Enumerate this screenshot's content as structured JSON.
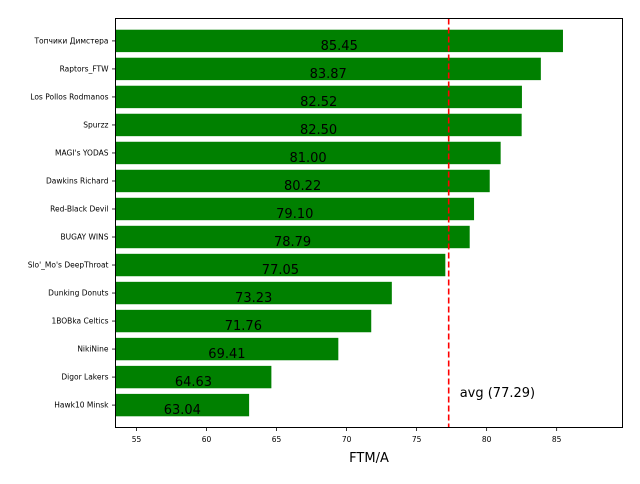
{
  "chart_data": {
    "type": "bar",
    "orientation": "horizontal",
    "categories": [
      "Топчики Димстера",
      "Raptors_FTW",
      "Los Pollos Rodmanos",
      "Spurzz",
      "MAGI's YODAS",
      "Dawkins Richard",
      "Red-Black Devil",
      "BUGAY WINS",
      "Slo'_Mo's DeepThroat",
      "Dunking Donuts",
      "1BOBka Celtics",
      "NikiNine",
      "Digor Lakers",
      "Hawk10 Minsk"
    ],
    "values": [
      85.45,
      83.87,
      82.52,
      82.5,
      81.0,
      80.22,
      79.1,
      78.79,
      77.05,
      73.23,
      71.76,
      69.41,
      64.63,
      63.04
    ],
    "value_labels": [
      "85.45",
      "83.87",
      "82.52",
      "82.50",
      "81.00",
      "80.22",
      "79.10",
      "78.79",
      "77.05",
      "73.23",
      "71.76",
      "69.41",
      "64.63",
      "63.04"
    ],
    "xlabel": "FTM/A",
    "ylabel": "",
    "xlim": [
      53.5,
      89.7
    ],
    "xticks": [
      55,
      60,
      65,
      70,
      75,
      80,
      85
    ],
    "bar_color": "#008000",
    "grid": false,
    "average": {
      "value": 77.29,
      "label": "avg (77.29)",
      "color": "#ff0000"
    }
  }
}
